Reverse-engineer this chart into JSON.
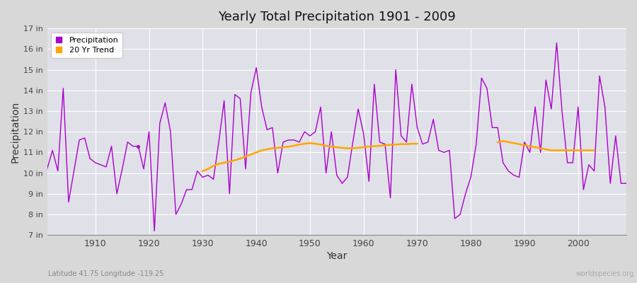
{
  "title": "Yearly Total Precipitation 1901 - 2009",
  "xlabel": "Year",
  "ylabel": "Precipitation",
  "subtitle": "Latitude 41.75 Longitude -119.25",
  "watermark": "worldspecies.org",
  "fig_bg_color": "#d8d8d8",
  "plot_bg_color": "#e0e0e8",
  "precip_color": "#aa00cc",
  "trend_color": "#ffa500",
  "ylim": [
    7,
    17
  ],
  "xlim": [
    1901,
    2009
  ],
  "yticks": [
    7,
    8,
    9,
    10,
    11,
    12,
    13,
    14,
    15,
    16,
    17
  ],
  "ytick_labels": [
    "7 in",
    "8 in",
    "9 in",
    "10 in",
    "11 in",
    "12 in",
    "13 in",
    "14 in",
    "15 in",
    "16 in",
    "17 in"
  ],
  "xticks": [
    1910,
    1920,
    1930,
    1940,
    1950,
    1960,
    1970,
    1980,
    1990,
    2000
  ],
  "years": [
    1901,
    1902,
    1903,
    1904,
    1905,
    1906,
    1907,
    1908,
    1909,
    1910,
    1911,
    1912,
    1913,
    1914,
    1915,
    1916,
    1917,
    1918,
    1919,
    1920,
    1921,
    1922,
    1923,
    1924,
    1925,
    1926,
    1927,
    1928,
    1929,
    1930,
    1931,
    1932,
    1933,
    1934,
    1935,
    1936,
    1937,
    1938,
    1939,
    1940,
    1941,
    1942,
    1943,
    1944,
    1945,
    1946,
    1947,
    1948,
    1949,
    1950,
    1951,
    1952,
    1953,
    1954,
    1955,
    1956,
    1957,
    1958,
    1959,
    1960,
    1961,
    1962,
    1963,
    1964,
    1965,
    1966,
    1967,
    1968,
    1969,
    1970,
    1971,
    1972,
    1973,
    1974,
    1975,
    1976,
    1977,
    1978,
    1979,
    1980,
    1981,
    1982,
    1983,
    1984,
    1985,
    1986,
    1987,
    1988,
    1989,
    1990,
    1991,
    1992,
    1993,
    1994,
    1995,
    1996,
    1997,
    1998,
    1999,
    2000,
    2001,
    2002,
    2003,
    2004,
    2005,
    2006,
    2007,
    2008,
    2009
  ],
  "precip": [
    10.2,
    11.1,
    10.1,
    14.1,
    8.6,
    10.1,
    11.6,
    11.7,
    10.7,
    10.5,
    10.4,
    10.3,
    11.3,
    9.0,
    10.2,
    11.5,
    11.3,
    11.3,
    10.2,
    12.0,
    7.2,
    12.4,
    13.4,
    12.0,
    8.0,
    8.5,
    9.2,
    9.2,
    10.1,
    9.8,
    9.9,
    9.7,
    11.5,
    13.5,
    9.0,
    13.8,
    13.6,
    10.2,
    13.9,
    15.1,
    13.2,
    12.1,
    12.2,
    10.0,
    11.5,
    11.6,
    11.6,
    11.5,
    12.0,
    11.8,
    12.0,
    13.2,
    10.0,
    12.0,
    9.9,
    9.5,
    9.8,
    11.5,
    13.1,
    11.9,
    9.6,
    14.3,
    11.5,
    11.4,
    8.8,
    15.0,
    11.8,
    11.5,
    14.3,
    12.2,
    11.4,
    11.5,
    12.6,
    11.1,
    11.0,
    11.1,
    7.8,
    8.0,
    9.0,
    9.8,
    11.4,
    14.6,
    14.1,
    12.2,
    12.2,
    10.5,
    10.1,
    9.9,
    9.8,
    11.5,
    11.0,
    13.2,
    11.0,
    14.5,
    13.1,
    16.3,
    13.0,
    10.5,
    10.5,
    13.2,
    9.2,
    10.4,
    10.1,
    14.7,
    13.2,
    9.5,
    11.8,
    9.5,
    9.5
  ],
  "isolated_dot_year": 1918,
  "isolated_dot_val": 11.3,
  "trend_seg1_years": [
    1930,
    1931,
    1932,
    1933,
    1934,
    1935,
    1936,
    1937,
    1938,
    1939,
    1940,
    1941,
    1942,
    1943,
    1944,
    1945,
    1946,
    1947,
    1948,
    1949,
    1950,
    1951,
    1952,
    1953,
    1954,
    1955,
    1956,
    1957,
    1958,
    1959,
    1960,
    1961,
    1962,
    1963,
    1964,
    1965,
    1966,
    1967,
    1968,
    1969,
    1970
  ],
  "trend_seg1_vals": [
    10.1,
    10.2,
    10.35,
    10.45,
    10.5,
    10.55,
    10.62,
    10.7,
    10.8,
    10.9,
    11.0,
    11.1,
    11.15,
    11.2,
    11.22,
    11.25,
    11.28,
    11.32,
    11.38,
    11.42,
    11.45,
    11.42,
    11.38,
    11.32,
    11.28,
    11.25,
    11.22,
    11.2,
    11.2,
    11.22,
    11.25,
    11.28,
    11.3,
    11.32,
    11.35,
    11.37,
    11.38,
    11.4,
    11.4,
    11.42,
    11.42
  ],
  "trend_seg2_years": [
    1985,
    1986,
    1987,
    1988,
    1989,
    1990,
    1991,
    1992,
    1993,
    1994,
    1995,
    1996,
    1997,
    1998,
    1999,
    2000,
    2001,
    2002,
    2003
  ],
  "trend_seg2_vals": [
    11.5,
    11.55,
    11.5,
    11.45,
    11.4,
    11.35,
    11.3,
    11.25,
    11.2,
    11.15,
    11.1,
    11.1,
    11.1,
    11.1,
    11.1,
    11.1,
    11.1,
    11.1,
    11.1
  ]
}
